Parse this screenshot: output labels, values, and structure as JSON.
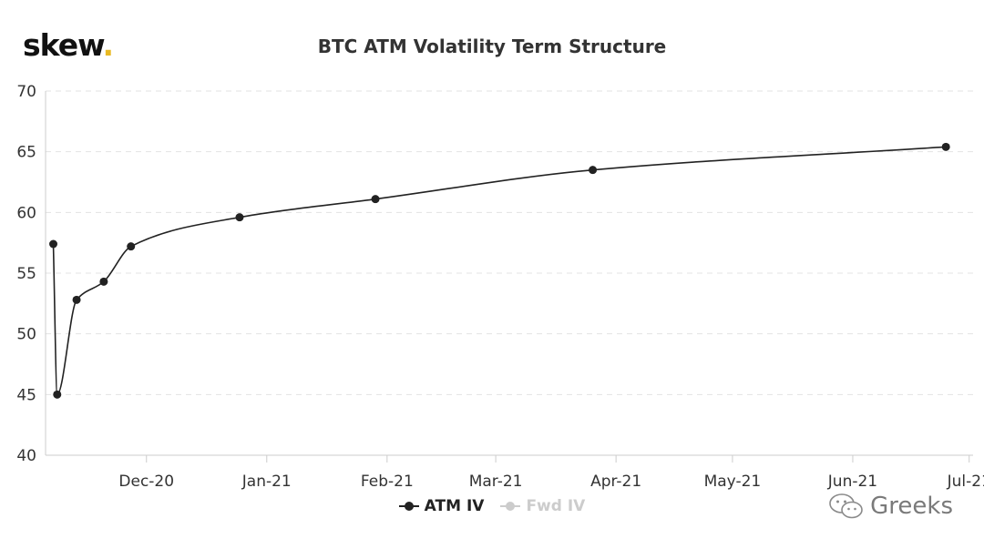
{
  "brand": {
    "logo_text": "skew",
    "logo_dot": ".",
    "logo_dot_color": "#e8b923"
  },
  "watermark": {
    "text": "Greeks",
    "icon": "wechat-icon"
  },
  "chart_data": {
    "type": "line",
    "title": "BTC ATM Volatility Term Structure",
    "xlabel": "",
    "ylabel": "",
    "ylim": [
      40,
      70
    ],
    "yticks": [
      40,
      45,
      50,
      55,
      60,
      65,
      70
    ],
    "xlim": [
      "2020-11-05",
      "2021-07-02"
    ],
    "xticks": [
      {
        "label": "Dec-20",
        "date": "2020-12-01"
      },
      {
        "label": "Jan-21",
        "date": "2021-01-01"
      },
      {
        "label": "Feb-21",
        "date": "2021-02-01"
      },
      {
        "label": "Mar-21",
        "date": "2021-03-01"
      },
      {
        "label": "Apr-21",
        "date": "2021-04-01"
      },
      {
        "label": "May-21",
        "date": "2021-05-01"
      },
      {
        "label": "Jun-21",
        "date": "2021-06-01"
      },
      {
        "label": "Jul-21",
        "date": "2021-07-01"
      }
    ],
    "grid": true,
    "legend_position": "bottom-center",
    "series": [
      {
        "name": "ATM IV",
        "color": "#222222",
        "active": true,
        "points": [
          {
            "x": "2020-11-07",
            "y": 57.4
          },
          {
            "x": "2020-11-08",
            "y": 45.0
          },
          {
            "x": "2020-11-13",
            "y": 52.8
          },
          {
            "x": "2020-11-20",
            "y": 54.3
          },
          {
            "x": "2020-11-27",
            "y": 57.2
          },
          {
            "x": "2020-12-25",
            "y": 59.6
          },
          {
            "x": "2021-01-29",
            "y": 61.1
          },
          {
            "x": "2021-03-26",
            "y": 63.5
          },
          {
            "x": "2021-06-25",
            "y": 65.4
          }
        ]
      },
      {
        "name": "Fwd IV",
        "color": "#cccccc",
        "active": false,
        "points": []
      }
    ]
  }
}
